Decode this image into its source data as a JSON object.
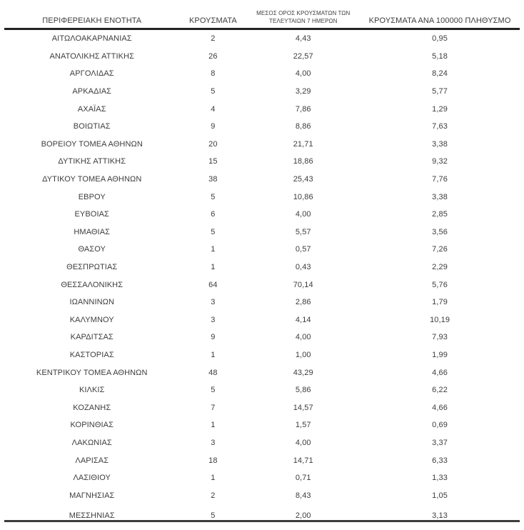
{
  "table": {
    "headers": {
      "region": "ΠΕΡΙΦΕΡΕΙΑΚΗ ΕΝΟΤΗΤΑ",
      "cases": "ΚΡΟΥΣΜΑΤΑ",
      "avg7_line1": "ΜΕΣΟΣ ΟΡΟΣ ΚΡΟΥΣΜΑΤΩΝ ΤΩΝ",
      "avg7_line2": "ΤΕΛΕΥΤΑΙΩΝ 7 ΗΜΕΡΩΝ",
      "per100k": "ΚΡΟΥΣΜΑΤΑ ΑΝΑ 100000 ΠΛΗΘΥΣΜΟ"
    },
    "rows": [
      [
        "ΑΙΤΩΛΟΑΚΑΡΝΑΝΙΑΣ",
        "2",
        "4,43",
        "0,95"
      ],
      [
        "ΑΝΑΤΟΛΙΚΗΣ ΑΤΤΙΚΗΣ",
        "26",
        "22,57",
        "5,18"
      ],
      [
        "ΑΡΓΟΛΙΔΑΣ",
        "8",
        "4,00",
        "8,24"
      ],
      [
        "ΑΡΚΑΔΙΑΣ",
        "5",
        "3,29",
        "5,77"
      ],
      [
        "ΑΧΑΪΑΣ",
        "4",
        "7,86",
        "1,29"
      ],
      [
        "ΒΟΙΩΤΙΑΣ",
        "9",
        "8,86",
        "7,63"
      ],
      [
        "ΒΟΡΕΙΟΥ ΤΟΜΕΑ ΑΘΗΝΩΝ",
        "20",
        "21,71",
        "3,38"
      ],
      [
        "ΔΥΤΙΚΗΣ ΑΤΤΙΚΗΣ",
        "15",
        "18,86",
        "9,32"
      ],
      [
        "ΔΥΤΙΚΟΥ ΤΟΜΕΑ ΑΘΗΝΩΝ",
        "38",
        "25,43",
        "7,76"
      ],
      [
        "ΕΒΡΟΥ",
        "5",
        "10,86",
        "3,38"
      ],
      [
        "ΕΥΒΟΙΑΣ",
        "6",
        "4,00",
        "2,85"
      ],
      [
        "ΗΜΑΘΙΑΣ",
        "5",
        "5,57",
        "3,56"
      ],
      [
        "ΘΑΣΟΥ",
        "1",
        "0,57",
        "7,26"
      ],
      [
        "ΘΕΣΠΡΩΤΙΑΣ",
        "1",
        "0,43",
        "2,29"
      ],
      [
        "ΘΕΣΣΑΛΟΝΙΚΗΣ",
        "64",
        "70,14",
        "5,76"
      ],
      [
        "ΙΩΑΝΝΙΝΩΝ",
        "3",
        "2,86",
        "1,79"
      ],
      [
        "ΚΑΛΥΜΝΟΥ",
        "3",
        "4,14",
        "10,19"
      ],
      [
        "ΚΑΡΔΙΤΣΑΣ",
        "9",
        "4,00",
        "7,93"
      ],
      [
        "ΚΑΣΤΟΡΙΑΣ",
        "1",
        "1,00",
        "1,99"
      ],
      [
        "ΚΕΝΤΡΙΚΟΥ ΤΟΜΕΑ ΑΘΗΝΩΝ",
        "48",
        "43,29",
        "4,66"
      ],
      [
        "ΚΙΛΚΙΣ",
        "5",
        "5,86",
        "6,22"
      ],
      [
        "ΚΟΖΑΝΗΣ",
        "7",
        "14,57",
        "4,66"
      ],
      [
        "ΚΟΡΙΝΘΙΑΣ",
        "1",
        "1,57",
        "0,69"
      ],
      [
        "ΛΑΚΩΝΙΑΣ",
        "3",
        "4,00",
        "3,37"
      ],
      [
        "ΛΑΡΙΣΑΣ",
        "18",
        "14,71",
        "6,33"
      ],
      [
        "ΛΑΣΙΘΙΟΥ",
        "1",
        "0,71",
        "1,33"
      ],
      [
        "ΜΑΓΝΗΣΙΑΣ",
        "2",
        "8,43",
        "1,05"
      ],
      [
        "ΜΕΣΣΗΝΙΑΣ",
        "5",
        "2,00",
        "3,13"
      ]
    ]
  },
  "colors": {
    "text": "#3d3d3d",
    "header_rule": "#222222",
    "bottom_rule": "#3c3c3c",
    "background": "#ffffff"
  }
}
